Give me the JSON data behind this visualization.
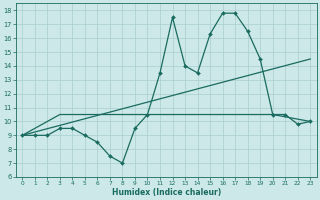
{
  "xlabel": "Humidex (Indice chaleur)",
  "xlim": [
    -0.5,
    23.5
  ],
  "ylim": [
    6,
    18.5
  ],
  "yticks": [
    6,
    7,
    8,
    9,
    10,
    11,
    12,
    13,
    14,
    15,
    16,
    17,
    18
  ],
  "xticks": [
    0,
    1,
    2,
    3,
    4,
    5,
    6,
    7,
    8,
    9,
    10,
    11,
    12,
    13,
    14,
    15,
    16,
    17,
    18,
    19,
    20,
    21,
    22,
    23
  ],
  "bg_color": "#cce8e8",
  "line_color": "#1a6b60",
  "grid_color": "#aacece",
  "series": [
    {
      "x": [
        0,
        1,
        2,
        3,
        4,
        5,
        6,
        7,
        8,
        9,
        10,
        11,
        12,
        13,
        14,
        15,
        16,
        17,
        18,
        19,
        20,
        21,
        22,
        23
      ],
      "y": [
        9,
        9,
        9,
        9.5,
        9.5,
        9.0,
        8.5,
        7.5,
        7.0,
        9.5,
        10.5,
        13.5,
        17.5,
        14.0,
        13.5,
        16.3,
        17.8,
        17.8,
        16.5,
        14.5,
        10.5,
        10.5,
        9.8,
        10.0
      ],
      "marker": "D",
      "markersize": 2.0,
      "linewidth": 0.9
    },
    {
      "x": [
        0,
        3,
        10,
        20,
        23
      ],
      "y": [
        9.0,
        10.5,
        10.5,
        10.5,
        10.0
      ],
      "marker": null,
      "linewidth": 0.9
    },
    {
      "x": [
        0,
        23
      ],
      "y": [
        9.0,
        14.5
      ],
      "marker": null,
      "linewidth": 0.9
    }
  ]
}
